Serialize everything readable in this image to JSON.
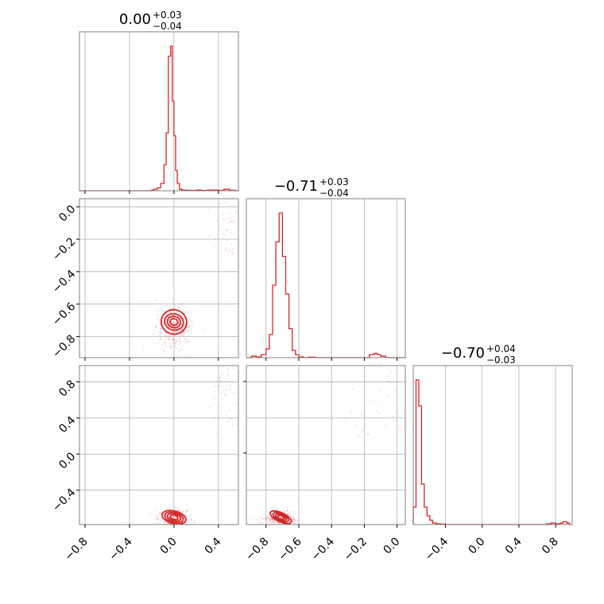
{
  "colors": {
    "series": "#d62728",
    "grid": "#b0b0b0",
    "frame": "#808080"
  },
  "chart_data": {
    "type": "corner",
    "grid": true,
    "panels": [
      {
        "id": "hist-0",
        "kind": "histogram",
        "row": 0,
        "col": 0,
        "title": {
          "value": "0.00",
          "plus": "+0.03",
          "minus": "−0.04"
        },
        "xlim": [
          -0.85,
          0.58
        ],
        "xticks": [
          -0.8,
          -0.4,
          0.0,
          0.4
        ],
        "bin_edges": [
          -0.85,
          -0.8,
          -0.75,
          -0.7,
          -0.65,
          -0.6,
          -0.55,
          -0.5,
          -0.45,
          -0.4,
          -0.35,
          -0.3,
          -0.25,
          -0.2,
          -0.18,
          -0.15,
          -0.12,
          -0.09,
          -0.07,
          -0.05,
          -0.03,
          -0.015,
          0.0,
          0.015,
          0.03,
          0.05,
          0.07,
          0.1,
          0.15,
          0.2,
          0.25,
          0.3,
          0.35,
          0.4,
          0.45,
          0.5,
          0.55,
          0.58
        ],
        "counts": [
          0,
          0,
          0,
          0,
          0,
          0,
          0,
          0,
          0,
          0,
          0,
          0,
          0,
          0.5,
          1,
          2,
          5,
          18,
          40,
          93,
          100,
          62,
          38,
          14,
          5,
          1,
          0.5,
          0.3,
          0.2,
          0.5,
          0.2,
          0.5,
          0.5,
          0.3,
          1,
          0.3,
          0
        ]
      },
      {
        "id": "hist-1",
        "kind": "histogram",
        "row": 1,
        "col": 1,
        "title": {
          "value": "−0.71",
          "plus": "+0.03",
          "minus": "−0.04"
        },
        "xlim": [
          -0.92,
          0.05
        ],
        "xticks": [
          -0.8,
          -0.6,
          -0.4,
          -0.2,
          0.0
        ],
        "bin_edges": [
          -0.92,
          -0.89,
          -0.86,
          -0.83,
          -0.8,
          -0.78,
          -0.76,
          -0.74,
          -0.72,
          -0.7,
          -0.68,
          -0.66,
          -0.64,
          -0.62,
          -0.6,
          -0.57,
          -0.54,
          -0.5,
          -0.45,
          -0.4,
          -0.35,
          -0.3,
          -0.25,
          -0.2,
          -0.17,
          -0.14,
          -0.12,
          -0.1,
          -0.07,
          -0.03,
          0.05
        ],
        "counts": [
          0,
          1,
          0.5,
          2,
          6,
          16,
          50,
          80,
          100,
          70,
          44,
          20,
          5,
          2,
          0.5,
          0,
          0.3,
          0,
          0,
          0,
          0,
          0,
          0,
          0,
          2,
          3,
          2,
          1,
          0,
          0
        ]
      },
      {
        "id": "hist-2",
        "kind": "histogram",
        "row": 2,
        "col": 2,
        "title": {
          "value": "−0.70",
          "plus": "+0.04",
          "minus": "−0.03"
        },
        "xlim": [
          -0.75,
          0.98
        ],
        "xticks": [
          -0.4,
          0.0,
          0.4,
          0.8
        ],
        "bin_edges": [
          -0.75,
          -0.72,
          -0.69,
          -0.66,
          -0.63,
          -0.6,
          -0.57,
          -0.54,
          -0.5,
          -0.45,
          -0.4,
          -0.3,
          -0.2,
          -0.1,
          0.0,
          0.1,
          0.2,
          0.3,
          0.4,
          0.5,
          0.6,
          0.65,
          0.7,
          0.75,
          0.8,
          0.85,
          0.88,
          0.92,
          0.95,
          0.98
        ],
        "counts": [
          12,
          100,
          82,
          28,
          12,
          6,
          3,
          1,
          0.5,
          0.3,
          0,
          0,
          0,
          0,
          0,
          0,
          0,
          0,
          0,
          0,
          0,
          0,
          0.5,
          1,
          0.5,
          1,
          2,
          1,
          0
        ]
      },
      {
        "id": "scatter-1-0",
        "kind": "scatter2d",
        "row": 1,
        "col": 0,
        "xlim": [
          -0.85,
          0.58
        ],
        "ylim": [
          -0.93,
          0.05
        ],
        "yticks": [
          0.0,
          -0.2,
          -0.4,
          -0.6,
          -0.8
        ],
        "center": [
          0.0,
          -0.71
        ],
        "contours": [
          [
            0.035,
            0.02
          ],
          [
            0.06,
            0.035
          ],
          [
            0.085,
            0.05
          ],
          [
            0.115,
            0.075
          ]
        ]
      },
      {
        "id": "scatter-2-0",
        "kind": "scatter2d",
        "row": 2,
        "col": 0,
        "xlim": [
          -0.85,
          0.58
        ],
        "ylim": [
          -0.78,
          0.98
        ],
        "yticks": [
          0.8,
          0.4,
          0.0,
          -0.4
        ],
        "center": [
          0.0,
          -0.7
        ],
        "contours": [
          [
            0.035,
            0.025
          ],
          [
            0.06,
            0.04
          ],
          [
            0.085,
            0.055
          ],
          [
            0.11,
            0.07
          ]
        ]
      },
      {
        "id": "scatter-2-1",
        "kind": "scatter2d",
        "row": 2,
        "col": 1,
        "xlim": [
          -0.92,
          0.05
        ],
        "ylim": [
          -0.78,
          0.98
        ],
        "center": [
          -0.71,
          -0.7
        ],
        "contours": [
          [
            0.02,
            0.02
          ],
          [
            0.035,
            0.03
          ],
          [
            0.05,
            0.04
          ],
          [
            0.07,
            0.05
          ]
        ]
      }
    ]
  }
}
